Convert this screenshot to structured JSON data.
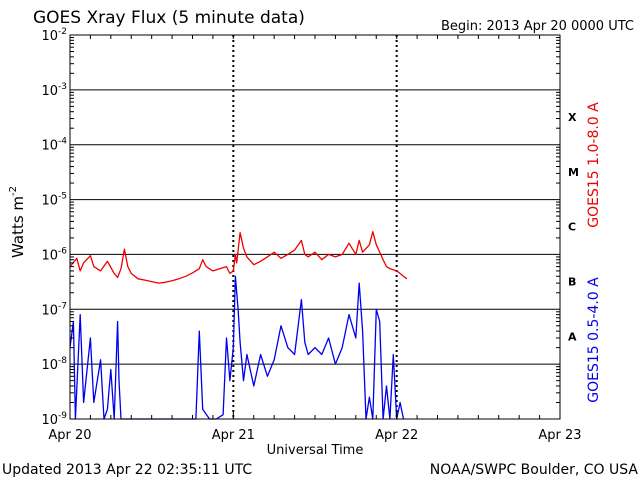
{
  "title": "GOES Xray Flux (5 minute data)",
  "begin_label": "Begin:  2013 Apr 20 0000 UTC",
  "ylabel": "Watts m",
  "ylabel_exp": "-2",
  "xlabel": "Universal Time",
  "updated": "Updated 2013 Apr 22 02:35:11 UTC",
  "credit": "NOAA/SWPC Boulder, CO USA",
  "colors": {
    "long": "#ee0000",
    "short": "#0000ee",
    "axis": "#000000",
    "background": "#ffffff"
  },
  "chart_data": {
    "type": "line",
    "yscale": "log",
    "ylim": [
      1e-09,
      0.01
    ],
    "xlim": [
      0,
      72
    ],
    "x_unit": "hours since 2013 Apr 20 0000 UTC",
    "x_ticks": [
      {
        "label": "Apr 20",
        "hour": 0
      },
      {
        "label": "Apr 21",
        "hour": 24
      },
      {
        "label": "Apr 22",
        "hour": 48
      },
      {
        "label": "Apr 23",
        "hour": 72
      }
    ],
    "y_ticks": [
      {
        "base": "10",
        "exp": "-9",
        "value": 1e-09
      },
      {
        "base": "10",
        "exp": "-8",
        "value": 1e-08
      },
      {
        "base": "10",
        "exp": "-7",
        "value": 1e-07
      },
      {
        "base": "10",
        "exp": "-6",
        "value": 1e-06
      },
      {
        "base": "10",
        "exp": "-5",
        "value": 1e-05
      },
      {
        "base": "10",
        "exp": "-4",
        "value": 0.0001
      },
      {
        "base": "10",
        "exp": "-3",
        "value": 0.001
      },
      {
        "base": "10",
        "exp": "-2",
        "value": 0.01
      }
    ],
    "flare_classes": [
      {
        "label": "A",
        "value": 3.2e-08
      },
      {
        "label": "B",
        "value": 3.2e-07
      },
      {
        "label": "C",
        "value": 3.2e-06
      },
      {
        "label": "M",
        "value": 3.2e-05
      },
      {
        "label": "X",
        "value": 0.00032
      }
    ],
    "grid": "horizontal lines at each decade, dotted vertical lines at day boundaries",
    "series": [
      {
        "name": "GOES15 1.0-8.0 A",
        "color": "#ee0000",
        "points": [
          [
            0,
            6e-07
          ],
          [
            1.0,
            8.5e-07
          ],
          [
            1.5,
            5e-07
          ],
          [
            2.0,
            7e-07
          ],
          [
            3.0,
            9.5e-07
          ],
          [
            3.5,
            6e-07
          ],
          [
            4.5,
            5e-07
          ],
          [
            5.5,
            7.5e-07
          ],
          [
            6.5,
            4.5e-07
          ],
          [
            7.0,
            3.8e-07
          ],
          [
            7.5,
            5.5e-07
          ],
          [
            8.0,
            1.25e-06
          ],
          [
            8.5,
            6e-07
          ],
          [
            9.0,
            4.5e-07
          ],
          [
            10.0,
            3.6e-07
          ],
          [
            11.0,
            3.4e-07
          ],
          [
            12.0,
            3.2e-07
          ],
          [
            13.0,
            3e-07
          ],
          [
            14.0,
            3.1e-07
          ],
          [
            15.0,
            3.3e-07
          ],
          [
            16.0,
            3.6e-07
          ],
          [
            17.0,
            4e-07
          ],
          [
            18.0,
            4.6e-07
          ],
          [
            19.0,
            5.5e-07
          ],
          [
            19.5,
            8e-07
          ],
          [
            20.0,
            6e-07
          ],
          [
            21.0,
            5e-07
          ],
          [
            22.0,
            5.5e-07
          ],
          [
            23.0,
            6e-07
          ],
          [
            23.5,
            4.5e-07
          ],
          [
            24.0,
            5e-07
          ],
          [
            24.3,
            1e-06
          ],
          [
            24.5,
            7e-07
          ],
          [
            25.0,
            2.5e-06
          ],
          [
            25.5,
            1.3e-06
          ],
          [
            26.0,
            9e-07
          ],
          [
            27.0,
            6.5e-07
          ],
          [
            28.0,
            7.5e-07
          ],
          [
            29.0,
            9e-07
          ],
          [
            30.0,
            1.1e-06
          ],
          [
            31.0,
            8.5e-07
          ],
          [
            32.0,
            1e-06
          ],
          [
            33.0,
            1.2e-06
          ],
          [
            34.0,
            1.8e-06
          ],
          [
            34.5,
            1e-06
          ],
          [
            35.0,
            9e-07
          ],
          [
            36.0,
            1.1e-06
          ],
          [
            37.0,
            8e-07
          ],
          [
            38.0,
            1e-06
          ],
          [
            39.0,
            9e-07
          ],
          [
            40.0,
            1e-06
          ],
          [
            41.0,
            1.6e-06
          ],
          [
            42.0,
            1e-06
          ],
          [
            42.5,
            1.8e-06
          ],
          [
            43.0,
            1.1e-06
          ],
          [
            44.0,
            1.5e-06
          ],
          [
            44.5,
            2.6e-06
          ],
          [
            45.0,
            1.5e-06
          ],
          [
            46.0,
            8e-07
          ],
          [
            46.5,
            6e-07
          ],
          [
            47.0,
            5.5e-07
          ],
          [
            48.0,
            5e-07
          ],
          [
            48.5,
            4.5e-07
          ],
          [
            49.0,
            4e-07
          ],
          [
            49.5,
            3.6e-07
          ]
        ]
      },
      {
        "name": "GOES15 0.5-4.0 A",
        "color": "#0000ee",
        "points": [
          [
            0,
            2e-08
          ],
          [
            0.5,
            6e-08
          ],
          [
            0.8,
            1e-09
          ],
          [
            1.5,
            8e-08
          ],
          [
            2.0,
            2e-09
          ],
          [
            3.0,
            3e-08
          ],
          [
            3.5,
            2e-09
          ],
          [
            4.5,
            1.2e-08
          ],
          [
            5.0,
            1e-09
          ],
          [
            5.5,
            1.5e-09
          ],
          [
            6.0,
            8e-09
          ],
          [
            6.5,
            1e-09
          ],
          [
            7.0,
            6e-08
          ],
          [
            7.2,
            5e-09
          ],
          [
            7.5,
            1e-09
          ],
          [
            8.5,
            1e-09
          ],
          [
            9.5,
            1e-09
          ],
          [
            10.5,
            1e-09
          ],
          [
            11.5,
            1e-09
          ],
          [
            13.0,
            1e-09
          ],
          [
            14.5,
            1e-09
          ],
          [
            16.0,
            1e-09
          ],
          [
            17.5,
            1e-09
          ],
          [
            18.5,
            1e-09
          ],
          [
            19.0,
            4e-08
          ],
          [
            19.5,
            1.5e-09
          ],
          [
            20.5,
            1e-09
          ],
          [
            21.5,
            1e-09
          ],
          [
            22.5,
            1.2e-09
          ],
          [
            23.0,
            3e-08
          ],
          [
            23.5,
            5e-09
          ],
          [
            24.0,
            2e-08
          ],
          [
            24.3,
            4e-07
          ],
          [
            24.7,
            1e-07
          ],
          [
            25.0,
            2.5e-08
          ],
          [
            25.5,
            5e-09
          ],
          [
            26.0,
            1.5e-08
          ],
          [
            27.0,
            4e-09
          ],
          [
            28.0,
            1.5e-08
          ],
          [
            29.0,
            6e-09
          ],
          [
            30.0,
            1.2e-08
          ],
          [
            31.0,
            5e-08
          ],
          [
            32.0,
            2e-08
          ],
          [
            33.0,
            1.5e-08
          ],
          [
            34.0,
            1.5e-07
          ],
          [
            34.5,
            2.5e-08
          ],
          [
            35.0,
            1.5e-08
          ],
          [
            36.0,
            2e-08
          ],
          [
            37.0,
            1.5e-08
          ],
          [
            38.0,
            3e-08
          ],
          [
            39.0,
            1e-08
          ],
          [
            40.0,
            2e-08
          ],
          [
            41.0,
            8e-08
          ],
          [
            42.0,
            3e-08
          ],
          [
            42.5,
            3e-07
          ],
          [
            43.0,
            4e-08
          ],
          [
            43.5,
            1e-09
          ],
          [
            44.0,
            2.5e-09
          ],
          [
            44.5,
            1e-09
          ],
          [
            45.0,
            1e-07
          ],
          [
            45.5,
            6e-08
          ],
          [
            46.0,
            1e-09
          ],
          [
            46.5,
            4e-09
          ],
          [
            47.0,
            1e-09
          ],
          [
            47.5,
            1.5e-08
          ],
          [
            48.0,
            1e-09
          ],
          [
            48.5,
            2e-09
          ],
          [
            49.0,
            1e-09
          ]
        ]
      }
    ]
  }
}
